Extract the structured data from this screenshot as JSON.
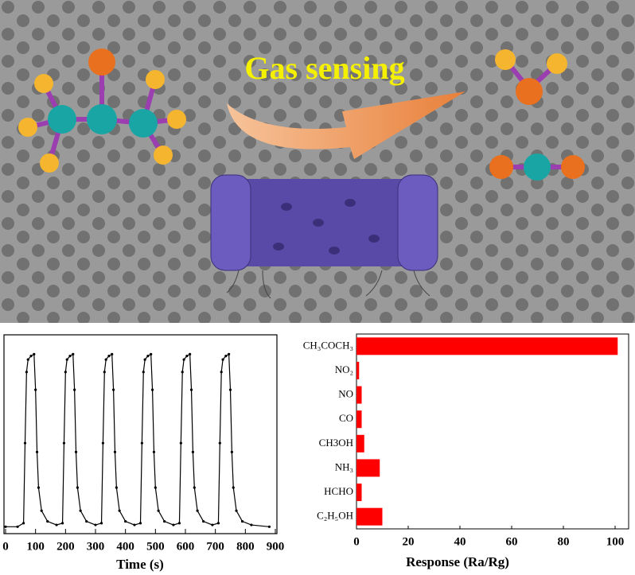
{
  "illustration": {
    "label": "Gas sensing"
  },
  "chart_data": [
    {
      "type": "line",
      "xlabel": "Time (s)",
      "color": "#000000",
      "xlim": [
        0,
        900
      ],
      "xticks": [
        0,
        100,
        200,
        300,
        400,
        500,
        600,
        700,
        800,
        900
      ],
      "ylim": [
        0,
        1.1
      ],
      "x": [
        0,
        40,
        60,
        65,
        70,
        75,
        85,
        95,
        100,
        105,
        110,
        120,
        140,
        170,
        190,
        195,
        200,
        205,
        215,
        225,
        230,
        235,
        240,
        250,
        270,
        300,
        320,
        325,
        330,
        335,
        345,
        355,
        360,
        365,
        370,
        380,
        400,
        430,
        450,
        455,
        460,
        465,
        475,
        485,
        490,
        495,
        500,
        510,
        530,
        560,
        580,
        585,
        590,
        595,
        605,
        615,
        620,
        625,
        630,
        640,
        660,
        690,
        710,
        715,
        720,
        725,
        735,
        745,
        750,
        755,
        760,
        770,
        790,
        820,
        880
      ],
      "values": [
        0.03,
        0.03,
        0.05,
        0.5,
        0.9,
        0.97,
        0.99,
        1.0,
        0.8,
        0.45,
        0.25,
        0.12,
        0.06,
        0.04,
        0.05,
        0.5,
        0.9,
        0.97,
        0.99,
        1.0,
        0.8,
        0.45,
        0.25,
        0.12,
        0.06,
        0.04,
        0.05,
        0.5,
        0.9,
        0.97,
        0.99,
        1.0,
        0.8,
        0.45,
        0.25,
        0.12,
        0.06,
        0.04,
        0.05,
        0.5,
        0.9,
        0.97,
        0.99,
        1.0,
        0.8,
        0.45,
        0.25,
        0.12,
        0.06,
        0.04,
        0.05,
        0.5,
        0.9,
        0.97,
        0.99,
        1.0,
        0.8,
        0.45,
        0.25,
        0.12,
        0.06,
        0.04,
        0.05,
        0.5,
        0.9,
        0.97,
        0.99,
        1.0,
        0.8,
        0.45,
        0.25,
        0.12,
        0.06,
        0.04,
        0.03
      ]
    },
    {
      "type": "hbar",
      "xlabel": "Response (Ra/Rg)",
      "color": "#ff0000",
      "categories": [
        "CH₃COCH₃",
        "NO₂",
        "NO",
        "CO",
        "CH3OH",
        "NH₃",
        "HCHO",
        "C₂H₅OH"
      ],
      "values": [
        101,
        1,
        2,
        2,
        3,
        9,
        2,
        10
      ],
      "xlim": [
        0,
        105
      ],
      "xticks": [
        0,
        20,
        40,
        60,
        80,
        100
      ]
    }
  ]
}
